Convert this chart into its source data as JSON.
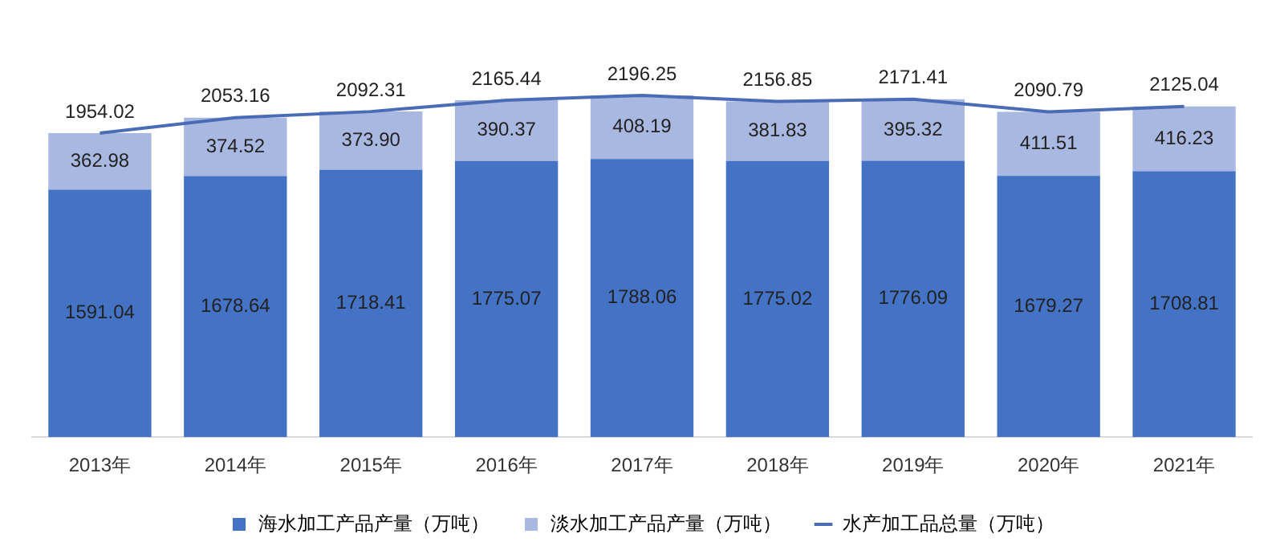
{
  "chart_data": {
    "type": "bar",
    "stacked": true,
    "categories": [
      "2013年",
      "2014年",
      "2015年",
      "2016年",
      "2017年",
      "2018年",
      "2019年",
      "2020年",
      "2021年"
    ],
    "series": [
      {
        "name": "海水加工产品产量（万吨）",
        "color": "#4472c4",
        "values": [
          1591.04,
          1678.64,
          1718.41,
          1775.07,
          1788.06,
          1775.02,
          1776.09,
          1679.27,
          1708.81
        ],
        "value_labels": [
          "1591.04",
          "1678.64",
          "1718.41",
          "1775.07",
          "1788.06",
          "1775.02",
          "1776.09",
          "1679.27",
          "1708.81"
        ]
      },
      {
        "name": "淡水加工产品产量（万吨）",
        "color": "#a9b8e0",
        "values": [
          362.98,
          374.52,
          373.9,
          390.37,
          408.19,
          381.83,
          395.32,
          411.51,
          416.23
        ],
        "value_labels": [
          "362.98",
          "374.52",
          "373.90",
          "390.37",
          "408.19",
          "381.83",
          "395.32",
          "411.51",
          "416.23"
        ]
      },
      {
        "name": "水产加工品总量（万吨）",
        "type": "line",
        "color": "#4a6bb5",
        "values": [
          1954.02,
          2053.16,
          2092.31,
          2165.44,
          2196.25,
          2156.85,
          2171.41,
          2090.79,
          2125.04
        ],
        "value_labels": [
          "1954.02",
          "2053.16",
          "2092.31",
          "2165.44",
          "2196.25",
          "2156.85",
          "2171.41",
          "2090.79",
          "2125.04"
        ]
      }
    ],
    "grid": false,
    "legend": "bottom",
    "marker": "none",
    "line_style": "solid"
  }
}
